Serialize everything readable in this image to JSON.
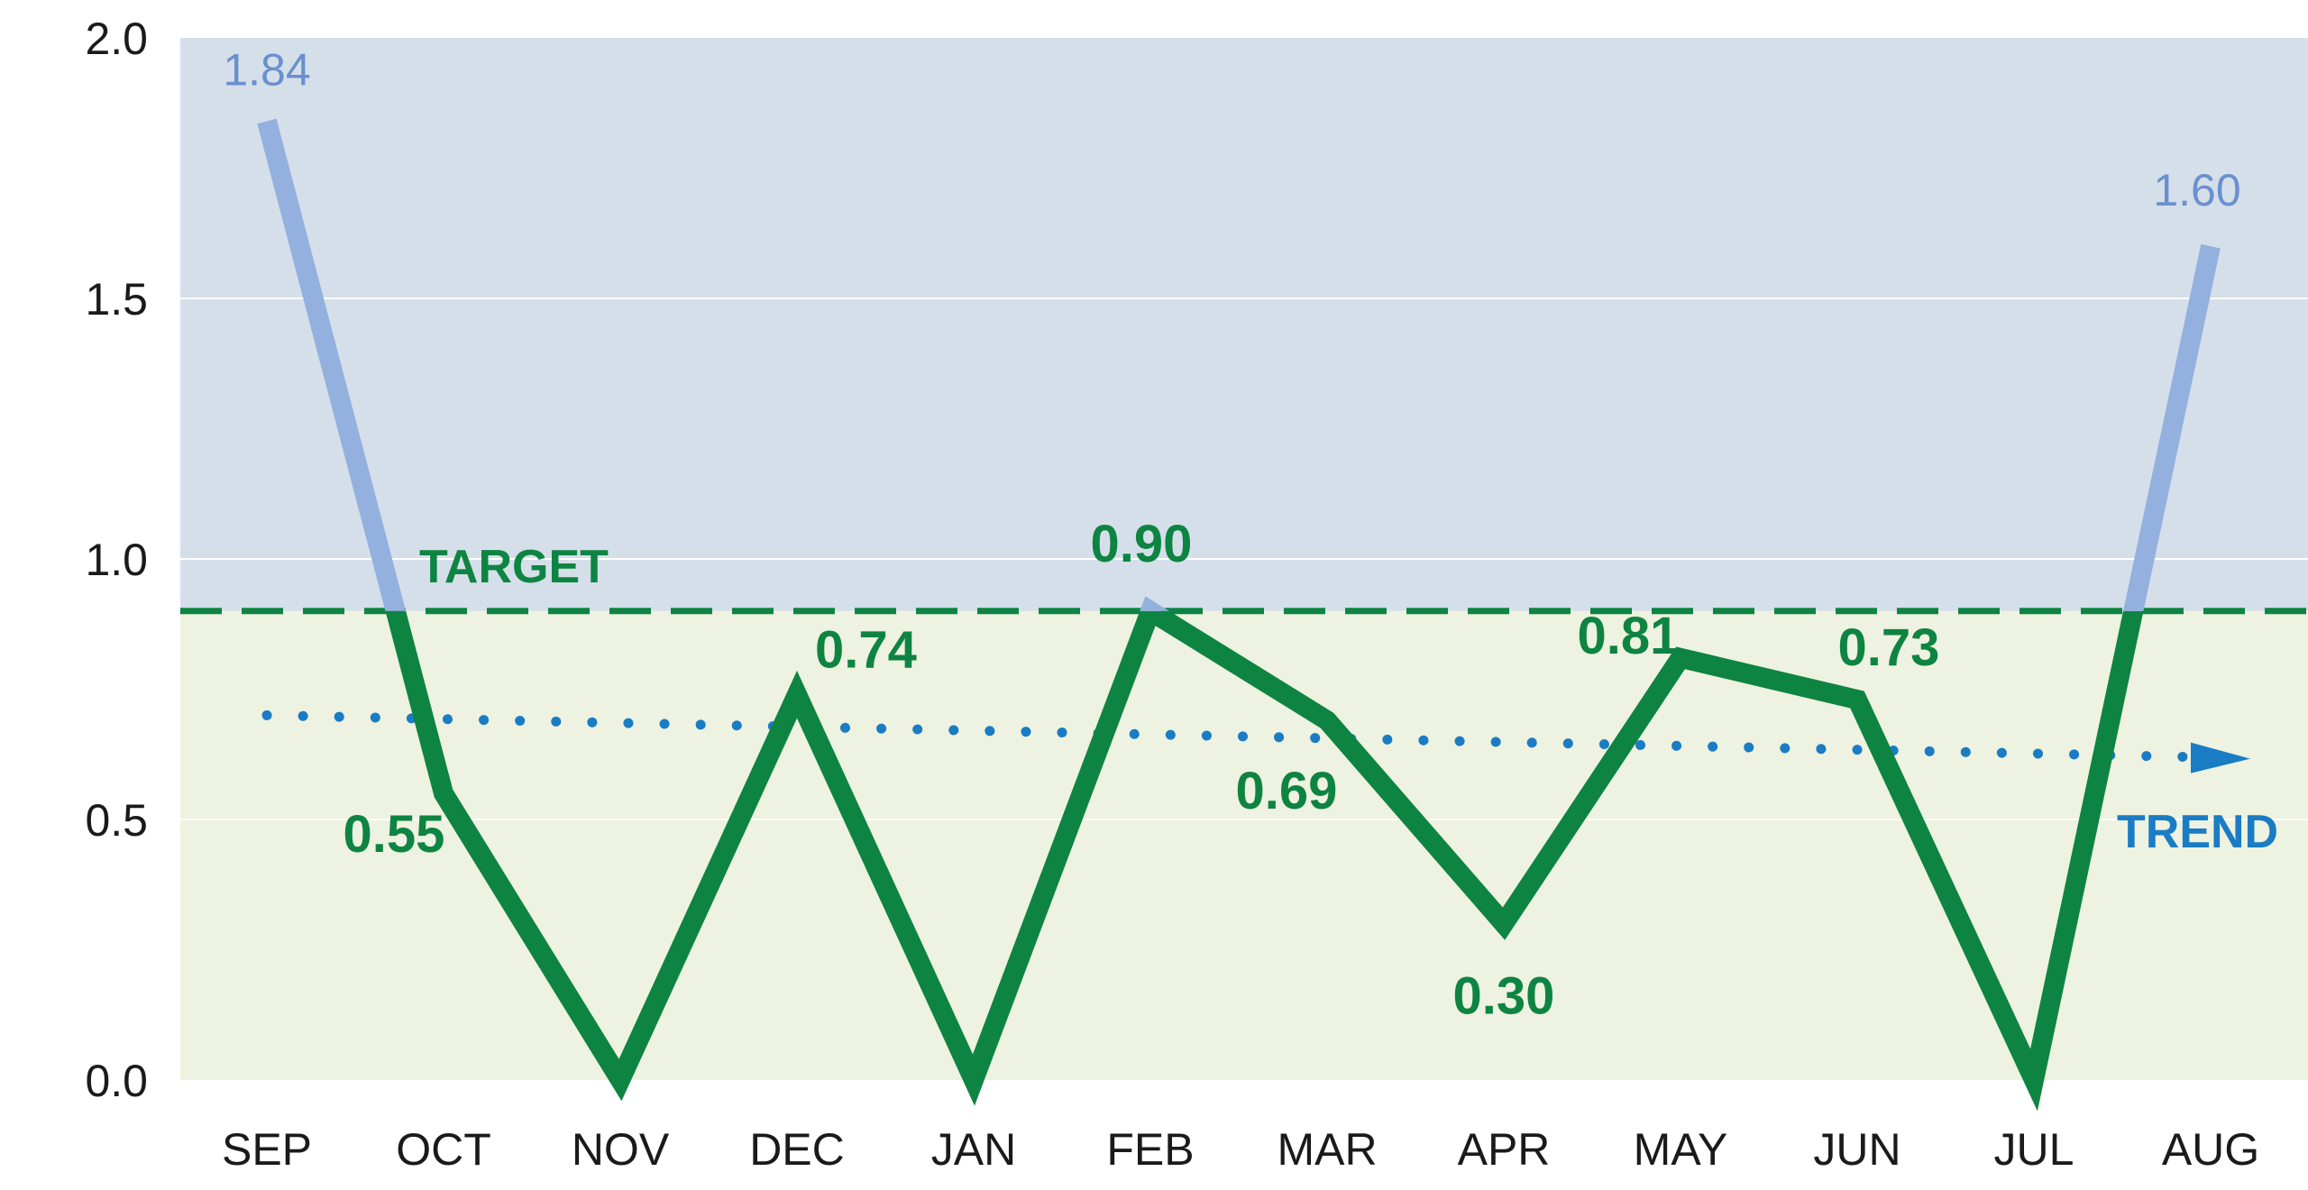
{
  "chart_data": {
    "type": "line",
    "categories": [
      "SEP",
      "OCT",
      "NOV",
      "DEC",
      "JAN",
      "FEB",
      "MAR",
      "APR",
      "MAY",
      "JUN",
      "JUL",
      "AUG"
    ],
    "series": [
      {
        "values": [
          1.84,
          0.55,
          0.0,
          0.74,
          0.0,
          0.9,
          0.69,
          0.3,
          0.81,
          0.73,
          0.0,
          1.6
        ]
      }
    ],
    "data_labels": [
      "1.84",
      "0.55",
      "",
      "0.74",
      "",
      "0.90",
      "0.69",
      "0.30",
      "0.81",
      "0.73",
      "",
      "1.60"
    ],
    "yticks": [
      "0.0",
      "0.5",
      "1.0",
      "1.5",
      "2.0"
    ],
    "ylim": [
      0,
      2.0
    ],
    "grid": true,
    "target": {
      "label": "TARGET",
      "value": 0.9
    },
    "trend": {
      "label": "TREND",
      "start": 0.7,
      "end": 0.62
    },
    "colors": {
      "below_line": "#0e8442",
      "above_line": "#94b0df",
      "above_label": "#6a90cf",
      "above_region": "#d5dfe9",
      "below_region": "#eef2e0",
      "trend": "#1a7cc4",
      "gridline": "#ffffff"
    }
  }
}
